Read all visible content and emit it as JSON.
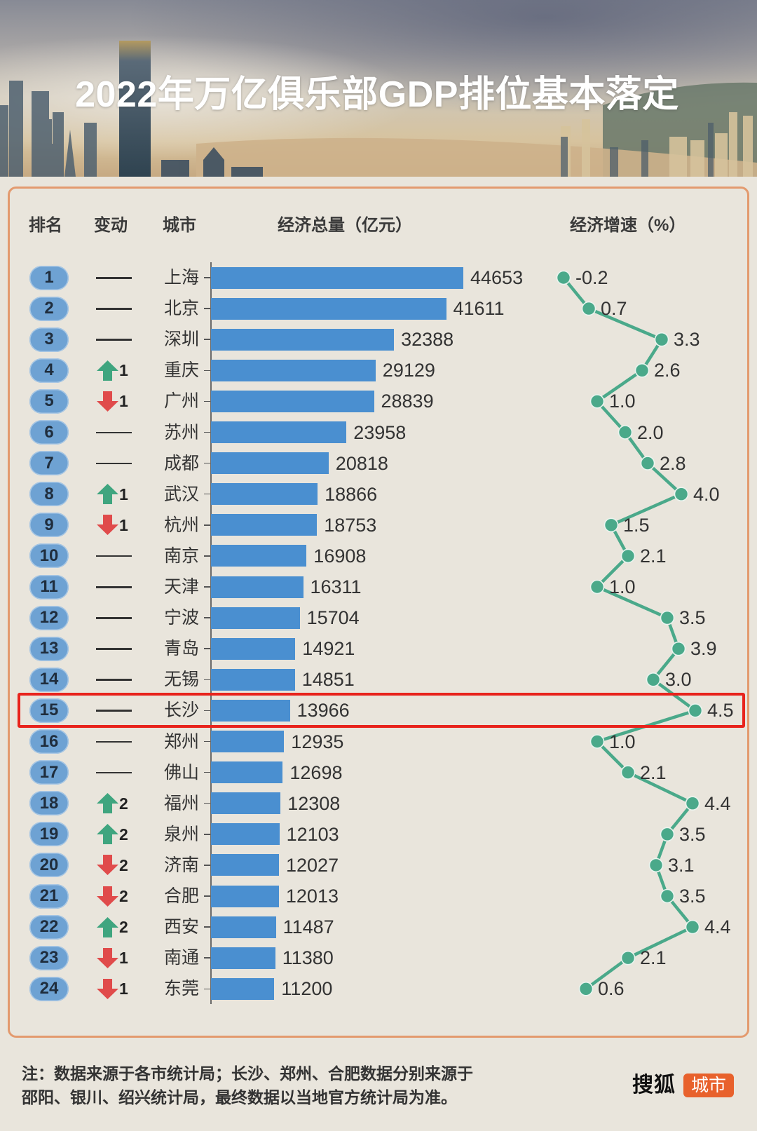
{
  "header": {
    "title": "2022年万亿俱乐部GDP排位基本落定"
  },
  "table": {
    "columns": {
      "rank": "排名",
      "change": "变动",
      "city": "城市",
      "gdp": "经济总量（亿元）",
      "growth": "经济增速（%）"
    }
  },
  "rows": [
    {
      "rank": "1",
      "change": {
        "dir": "none",
        "value": ""
      },
      "city": "上海",
      "gdp": "44653",
      "growth": "-0.2"
    },
    {
      "rank": "2",
      "change": {
        "dir": "none",
        "value": ""
      },
      "city": "北京",
      "gdp": "41611",
      "growth": "0.7"
    },
    {
      "rank": "3",
      "change": {
        "dir": "none",
        "value": ""
      },
      "city": "深圳",
      "gdp": "32388",
      "growth": "3.3"
    },
    {
      "rank": "4",
      "change": {
        "dir": "up",
        "value": "1"
      },
      "city": "重庆",
      "gdp": "29129",
      "growth": "2.6"
    },
    {
      "rank": "5",
      "change": {
        "dir": "down",
        "value": "1"
      },
      "city": "广州",
      "gdp": "28839",
      "growth": "1.0"
    },
    {
      "rank": "6",
      "change": {
        "dir": "none",
        "value": ""
      },
      "city": "苏州",
      "gdp": "23958",
      "growth": "2.0"
    },
    {
      "rank": "7",
      "change": {
        "dir": "none",
        "value": ""
      },
      "city": "成都",
      "gdp": "20818",
      "growth": "2.8"
    },
    {
      "rank": "8",
      "change": {
        "dir": "up",
        "value": "1"
      },
      "city": "武汉",
      "gdp": "18866",
      "growth": "4.0"
    },
    {
      "rank": "9",
      "change": {
        "dir": "down",
        "value": "1"
      },
      "city": "杭州",
      "gdp": "18753",
      "growth": "1.5"
    },
    {
      "rank": "10",
      "change": {
        "dir": "none",
        "value": ""
      },
      "city": "南京",
      "gdp": "16908",
      "growth": "2.1"
    },
    {
      "rank": "11",
      "change": {
        "dir": "none",
        "value": ""
      },
      "city": "天津",
      "gdp": "16311",
      "growth": "1.0"
    },
    {
      "rank": "12",
      "change": {
        "dir": "none",
        "value": ""
      },
      "city": "宁波",
      "gdp": "15704",
      "growth": "3.5"
    },
    {
      "rank": "13",
      "change": {
        "dir": "none",
        "value": ""
      },
      "city": "青岛",
      "gdp": "14921",
      "growth": "3.9"
    },
    {
      "rank": "14",
      "change": {
        "dir": "none",
        "value": ""
      },
      "city": "无锡",
      "gdp": "14851",
      "growth": "3.0"
    },
    {
      "rank": "15",
      "change": {
        "dir": "none",
        "value": ""
      },
      "city": "长沙",
      "gdp": "13966",
      "growth": "4.5"
    },
    {
      "rank": "16",
      "change": {
        "dir": "none",
        "value": ""
      },
      "city": "郑州",
      "gdp": "12935",
      "growth": "1.0"
    },
    {
      "rank": "17",
      "change": {
        "dir": "none",
        "value": ""
      },
      "city": "佛山",
      "gdp": "12698",
      "growth": "2.1"
    },
    {
      "rank": "18",
      "change": {
        "dir": "up",
        "value": "2"
      },
      "city": "福州",
      "gdp": "12308",
      "growth": "4.4"
    },
    {
      "rank": "19",
      "change": {
        "dir": "up",
        "value": "2"
      },
      "city": "泉州",
      "gdp": "12103",
      "growth": "3.5"
    },
    {
      "rank": "20",
      "change": {
        "dir": "down",
        "value": "2"
      },
      "city": "济南",
      "gdp": "12027",
      "growth": "3.1"
    },
    {
      "rank": "21",
      "change": {
        "dir": "down",
        "value": "2"
      },
      "city": "合肥",
      "gdp": "12013",
      "growth": "3.5"
    },
    {
      "rank": "22",
      "change": {
        "dir": "up",
        "value": "2"
      },
      "city": "西安",
      "gdp": "11487",
      "growth": "4.4"
    },
    {
      "rank": "23",
      "change": {
        "dir": "down",
        "value": "1"
      },
      "city": "南通",
      "gdp": "11380",
      "growth": "2.1"
    },
    {
      "rank": "24",
      "change": {
        "dir": "down",
        "value": "1"
      },
      "city": "东莞",
      "gdp": "11200",
      "growth": "0.6"
    }
  ],
  "highlight": {
    "rank": "15",
    "city": "长沙"
  },
  "footer": {
    "note_line1": "注：数据来源于各市统计局；长沙、郑州、合肥数据分别来源于",
    "note_line2": "邵阳、银川、绍兴统计局，最终数据以当地官方统计局为准。",
    "logo_text": "搜狐",
    "logo_badge": "城市"
  },
  "colors": {
    "background": "#e9e5dc",
    "bar": "#4a8fd0",
    "growth_line": "#4aa98a",
    "arrow_up": "#3fa57f",
    "arrow_down": "#e04b4b",
    "highlight_box": "#e8231c",
    "panel_border": "#e39a6e",
    "rank_pill": "#6ea2d3",
    "logo_badge": "#e8612c"
  },
  "chart_data": [
    {
      "type": "bar",
      "orientation": "horizontal",
      "title": "经济总量（亿元）",
      "xlabel": "",
      "ylabel": "城市",
      "categories": [
        "上海",
        "北京",
        "深圳",
        "重庆",
        "广州",
        "苏州",
        "成都",
        "武汉",
        "杭州",
        "南京",
        "天津",
        "宁波",
        "青岛",
        "无锡",
        "长沙",
        "郑州",
        "佛山",
        "福州",
        "泉州",
        "济南",
        "合肥",
        "西安",
        "南通",
        "东莞"
      ],
      "values": [
        44653,
        41611,
        32388,
        29129,
        28839,
        23958,
        20818,
        18866,
        18753,
        16908,
        16311,
        15704,
        14921,
        14851,
        13966,
        12935,
        12698,
        12308,
        12103,
        12027,
        12013,
        11487,
        11380,
        11200
      ],
      "data_labels": true,
      "grid": false
    },
    {
      "type": "line",
      "orientation": "vertical",
      "title": "经济增速（%）",
      "categories": [
        "上海",
        "北京",
        "深圳",
        "重庆",
        "广州",
        "苏州",
        "成都",
        "武汉",
        "杭州",
        "南京",
        "天津",
        "宁波",
        "青岛",
        "无锡",
        "长沙",
        "郑州",
        "佛山",
        "福州",
        "泉州",
        "济南",
        "合肥",
        "西安",
        "南通",
        "东莞"
      ],
      "values": [
        -0.2,
        0.7,
        3.3,
        2.6,
        1.0,
        2.0,
        2.8,
        4.0,
        1.5,
        2.1,
        1.0,
        3.5,
        3.9,
        3.0,
        4.5,
        1.0,
        2.1,
        4.4,
        3.5,
        3.1,
        3.5,
        4.4,
        2.1,
        0.6
      ],
      "markers": true,
      "data_labels": true,
      "grid": false
    }
  ]
}
